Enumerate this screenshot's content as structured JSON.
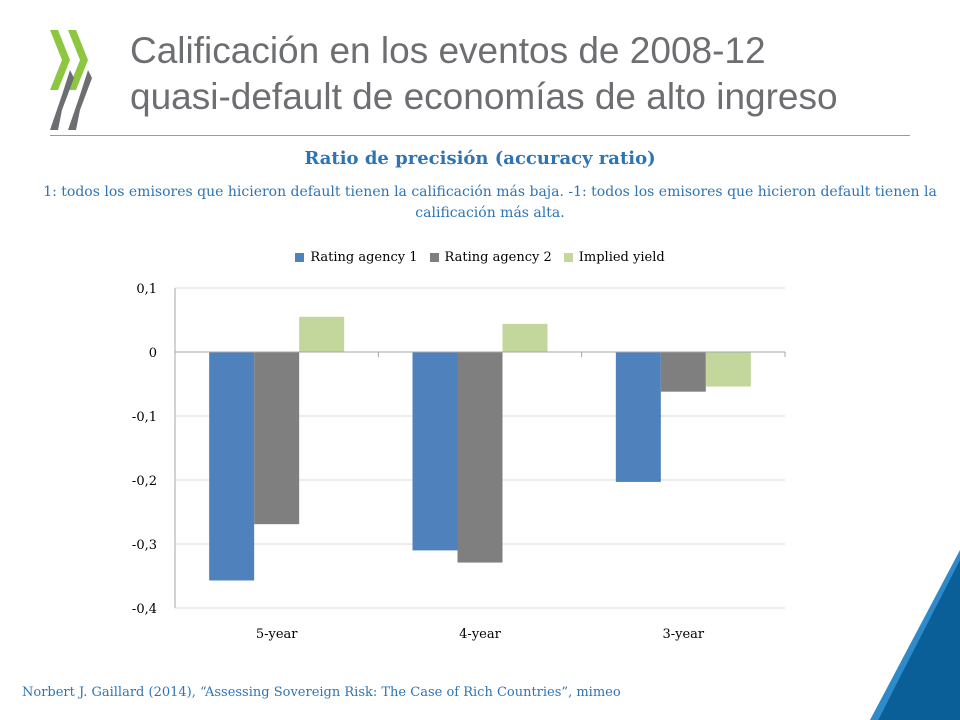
{
  "slide": {
    "title_line1": "Calificación en los eventos de 2008-12",
    "title_line2": "quasi-default de economías de alto ingreso",
    "source": "Norbert J. Gaillard  (2014), “Assessing Sovereign Risk: The Case of Rich Countries”, mimeo"
  },
  "colors": {
    "logo_green": "#8dc63f",
    "logo_grey": "#6d6e71",
    "heading_blue": "#2e74b5",
    "corner_blue": "#0b5f99",
    "corner_light": "#2e8ac9"
  },
  "chart_data": {
    "type": "bar",
    "title": "Ratio de precisión (accuracy ratio)",
    "subtitle": "1: todos los emisores que hicieron default tienen la calificación más baja. -1: todos los emisores que hicieron default tienen la calificación más alta.",
    "categories": [
      "5-year",
      "4-year",
      "3-year"
    ],
    "series": [
      {
        "name": "Rating agency 1",
        "color": "#4f81bd",
        "values": [
          -0.357,
          -0.31,
          -0.203
        ]
      },
      {
        "name": "Rating agency 2",
        "color": "#7f7f7f",
        "values": [
          -0.269,
          -0.329,
          -0.062
        ]
      },
      {
        "name": "Implied yield",
        "color": "#c3d69b",
        "values": [
          0.055,
          0.044,
          -0.054
        ]
      }
    ],
    "ylim": [
      -0.4,
      0.1
    ],
    "yticks": [
      0.1,
      0,
      -0.1,
      -0.2,
      -0.3,
      -0.4
    ],
    "ytick_labels": [
      "0,1",
      "0",
      "-0,1",
      "-0,2",
      "-0,3",
      "-0,4"
    ],
    "grid": true,
    "legend": "top"
  }
}
